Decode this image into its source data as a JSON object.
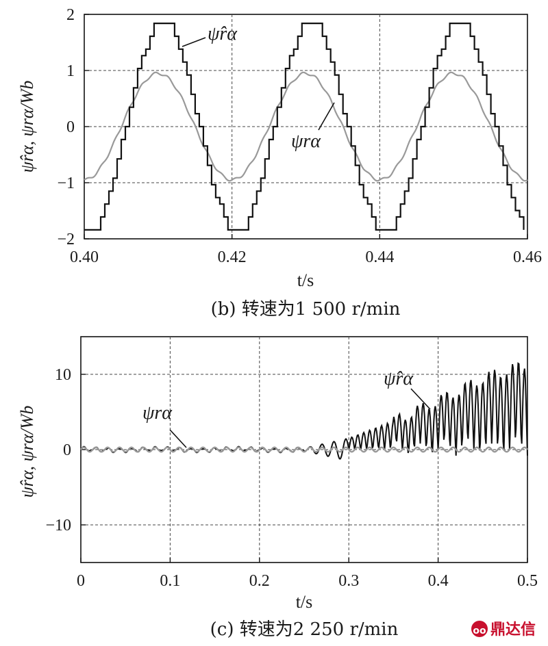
{
  "chart_data": [
    {
      "type": "line",
      "panel": "b",
      "caption": "(b) 转速为1 500 r/min",
      "xlabel": "t/s",
      "ylabel": "ψ̂rα, ψrα/Wb",
      "xlim": [
        0.4,
        0.46
      ],
      "ylim": [
        -2,
        2
      ],
      "xticks": [
        0.4,
        0.42,
        0.44,
        0.46
      ],
      "xtick_labels": [
        "0.40",
        "0.42",
        "0.44",
        "0.46"
      ],
      "yticks": [
        -2,
        -1,
        0,
        1,
        2
      ],
      "ytick_labels": [
        "−2",
        "−1",
        "0",
        "1",
        "2"
      ],
      "grid": true,
      "series": [
        {
          "name": "ψ̂rα",
          "color": "#111111",
          "amplitude": 1.88,
          "frequency_hz": 50,
          "phase_deg": 0,
          "peak_at": [
            0.4105,
            0.4305,
            0.4505
          ],
          "style": "staircase"
        },
        {
          "name": "ψrα",
          "color": "#999999",
          "amplitude": 0.95,
          "frequency_hz": 50,
          "phase_deg": 0,
          "peak_at": [
            0.41,
            0.43,
            0.45
          ],
          "style": "smooth"
        }
      ],
      "annotations": [
        {
          "text": "ψ̂rα",
          "x": 0.4155,
          "y": 1.7
        },
        {
          "text": "ψrα",
          "x": 0.4335,
          "y": -0.3
        }
      ]
    },
    {
      "type": "line",
      "panel": "c",
      "caption": "(c) 转速为2 250 r/min",
      "xlabel": "t/s",
      "ylabel": "ψ̂rα, ψrα/Wb",
      "xlim": [
        0,
        0.5
      ],
      "ylim": [
        -15,
        15
      ],
      "xticks": [
        0,
        0.1,
        0.2,
        0.3,
        0.4,
        0.5
      ],
      "xtick_labels": [
        "0",
        "0.1",
        "0.2",
        "0.3",
        "0.4",
        "0.5"
      ],
      "yticks": [
        -10,
        0,
        10
      ],
      "ytick_labels": [
        "−10",
        "0",
        "10"
      ],
      "grid": true,
      "series": [
        {
          "name": "ψ̂rα",
          "color": "#111111",
          "frequency_hz": 75,
          "envelope": [
            [
              0.25,
              0.2
            ],
            [
              0.3,
              1.5
            ],
            [
              0.35,
              3.8
            ],
            [
              0.4,
              6.5
            ],
            [
              0.45,
              9.5
            ],
            [
              0.5,
              11.5
            ]
          ],
          "style": "diverging"
        },
        {
          "name": "ψrα",
          "color": "#999999",
          "amplitude": 0.3,
          "frequency_hz": 75,
          "style": "smooth"
        }
      ],
      "annotations": [
        {
          "text": "ψrα",
          "x": 0.09,
          "y": 4.2
        },
        {
          "text": "ψ̂rα",
          "x": 0.356,
          "y": 9.0
        }
      ]
    }
  ],
  "watermark": {
    "text": "鼎达信",
    "color": "#c8102e"
  }
}
